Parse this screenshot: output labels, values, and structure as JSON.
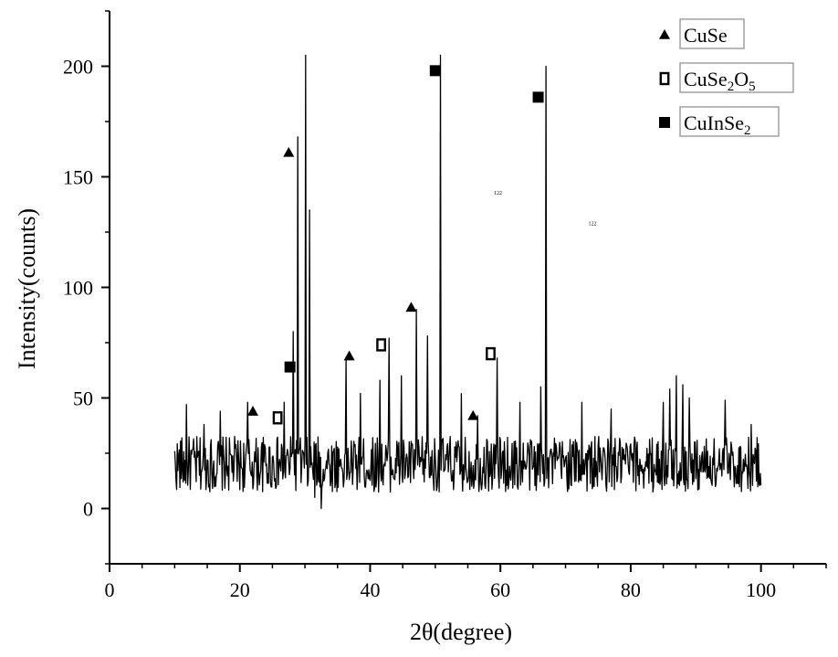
{
  "chart_data": {
    "type": "line",
    "title": "",
    "xlabel": "2θ(degree)",
    "ylabel": "Intensity(counts)",
    "xlim": [
      0,
      110
    ],
    "ylim": [
      -25,
      225
    ],
    "xticks": [
      0,
      20,
      40,
      60,
      80,
      100
    ],
    "yticks": [
      0,
      50,
      100,
      150,
      200
    ],
    "grid": false,
    "legend_position": "top-right",
    "series": [
      {
        "name": "",
        "color": "#000000",
        "baseline": {
          "x_start": 10,
          "x_end": 100,
          "mean": 20,
          "noise_amplitude": 14,
          "seed": 17
        },
        "features": [
          {
            "x": 11.8,
            "y": 47
          },
          {
            "x": 14.5,
            "y": 38
          },
          {
            "x": 17.0,
            "y": 44
          },
          {
            "x": 21.2,
            "y": 48
          },
          {
            "x": 26.8,
            "y": 48
          },
          {
            "x": 28.2,
            "y": 80
          },
          {
            "x": 28.9,
            "y": 168
          },
          {
            "x": 30.1,
            "y": 205
          },
          {
            "x": 30.7,
            "y": 135
          },
          {
            "x": 31.5,
            "y": 5
          },
          {
            "x": 32.5,
            "y": 0
          },
          {
            "x": 36.3,
            "y": 68
          },
          {
            "x": 38.5,
            "y": 52
          },
          {
            "x": 41.5,
            "y": 58
          },
          {
            "x": 42.9,
            "y": 77
          },
          {
            "x": 44.8,
            "y": 60
          },
          {
            "x": 47.1,
            "y": 90
          },
          {
            "x": 48.8,
            "y": 78
          },
          {
            "x": 50.8,
            "y": 205
          },
          {
            "x": 54.0,
            "y": 52
          },
          {
            "x": 56.5,
            "y": 42
          },
          {
            "x": 59.5,
            "y": 68
          },
          {
            "x": 63.0,
            "y": 48
          },
          {
            "x": 66.2,
            "y": 55
          },
          {
            "x": 67.0,
            "y": 200
          },
          {
            "x": 72.5,
            "y": 48
          },
          {
            "x": 77.0,
            "y": 45
          },
          {
            "x": 85.0,
            "y": 48
          },
          {
            "x": 86.0,
            "y": 54
          },
          {
            "x": 87.0,
            "y": 60
          },
          {
            "x": 88.0,
            "y": 56
          },
          {
            "x": 89.0,
            "y": 50
          },
          {
            "x": 94.5,
            "y": 49
          },
          {
            "x": 98.5,
            "y": 38
          }
        ]
      }
    ],
    "markers": [
      {
        "phase": "CuSe",
        "symbol": "triangle",
        "x": 22.0,
        "y": 44
      },
      {
        "phase": "CuSe",
        "symbol": "triangle",
        "x": 27.5,
        "y": 161
      },
      {
        "phase": "CuSe",
        "symbol": "triangle",
        "x": 36.8,
        "y": 69
      },
      {
        "phase": "CuSe",
        "symbol": "triangle",
        "x": 46.3,
        "y": 91
      },
      {
        "phase": "CuSe",
        "symbol": "triangle",
        "x": 55.8,
        "y": 42
      },
      {
        "phase": "CuSe2O5",
        "symbol": "open-square",
        "x": 25.8,
        "y": 41
      },
      {
        "phase": "CuSe2O5",
        "symbol": "open-square",
        "x": 41.7,
        "y": 74
      },
      {
        "phase": "CuSe2O5",
        "symbol": "open-square",
        "x": 58.5,
        "y": 70
      },
      {
        "phase": "CuInSe2",
        "symbol": "filled-square",
        "x": 27.7,
        "y": 64
      },
      {
        "phase": "CuInSe2",
        "symbol": "filled-square",
        "x": 50.0,
        "y": 198
      },
      {
        "phase": "CuInSe2",
        "symbol": "filled-square",
        "x": 65.8,
        "y": 186
      }
    ],
    "legend": [
      {
        "symbol": "triangle",
        "label": "CuSe",
        "main": "CuSe",
        "parts": []
      },
      {
        "symbol": "open-square",
        "label": "CuSe2O5",
        "main": "CuSe",
        "parts": [
          [
            "2",
            true
          ],
          [
            "O",
            false
          ],
          [
            "5",
            true
          ]
        ]
      },
      {
        "symbol": "filled-square",
        "label": "CuInSe2",
        "main": "CuInSe",
        "parts": [
          [
            "2",
            true
          ]
        ]
      }
    ],
    "annotations": [
      {
        "text": "122",
        "x": 59.0,
        "y": 142
      },
      {
        "text": "122",
        "x": 73.5,
        "y": 128
      }
    ]
  }
}
